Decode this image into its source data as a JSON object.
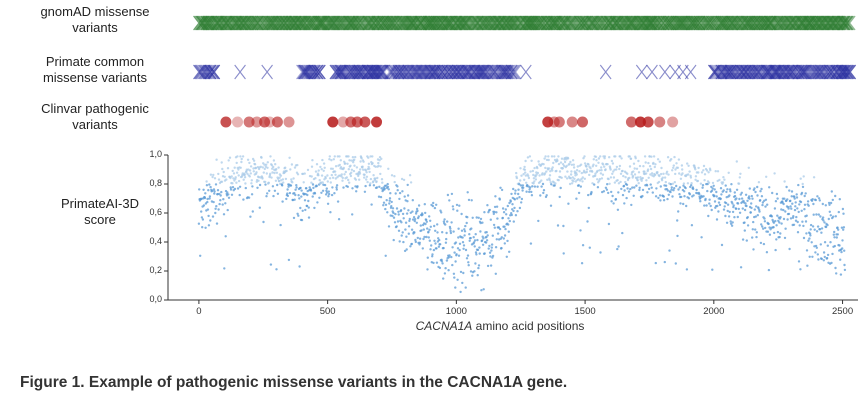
{
  "caption": "Figure 1. Example of pathogenic missense variants in the CACNA1A gene.",
  "chart_data": {
    "type": "scatter",
    "tracks": [
      {
        "name": "gnomAD missense variants",
        "label_line1": "gnomAD missense",
        "label_line2": "variants",
        "marker": "x",
        "color": "#2e7d32",
        "segments": [
          [
            0,
            2530
          ]
        ]
      },
      {
        "name": "Primate common missense variants",
        "label_line1": "Primate common",
        "label_line2": "missense variants",
        "marker": "x",
        "color": "#2a2fa0",
        "segments": [
          [
            0,
            60
          ],
          [
            400,
            470
          ],
          [
            530,
            720
          ],
          [
            740,
            1230
          ],
          [
            2000,
            2530
          ]
        ],
        "points": [
          160,
          265,
          1270,
          1580,
          1720,
          1760,
          1810,
          1850,
          1880,
          1910
        ]
      },
      {
        "name": "Clinvar pathogenic variants",
        "label_line1": "Clinvar pathogenic",
        "label_line2": "variants",
        "marker": "circle",
        "color": "#b71c1c",
        "points": [
          105,
          150,
          195,
          225,
          255,
          275,
          305,
          350,
          520,
          560,
          590,
          615,
          645,
          690,
          1355,
          1380,
          1400,
          1450,
          1490,
          1680,
          1715,
          1745,
          1790,
          1840
        ]
      }
    ],
    "scatter": {
      "ylabel_line1": "PrimateAI-3D",
      "ylabel_line2": "score",
      "xlabel_italic": "CACNA1A",
      "xlabel_rest": " amino acid positions",
      "xlim": [
        -120,
        2560
      ],
      "ylim": [
        0.0,
        1.0
      ],
      "xticks": [
        "0",
        "500",
        "1000",
        "1500",
        "2000",
        "2500"
      ],
      "xtick_values": [
        0,
        500,
        1000,
        1500,
        2000,
        2500
      ],
      "yticks": [
        "0,0",
        "0,2",
        "0,4",
        "0,6",
        "0,8",
        "1,0"
      ],
      "ytick_values": [
        0.0,
        0.2,
        0.4,
        0.6,
        0.8,
        1.0
      ],
      "color": "#5b9bd5",
      "profile": [
        [
          0,
          0.62
        ],
        [
          80,
          0.78
        ],
        [
          150,
          0.86
        ],
        [
          250,
          0.88
        ],
        [
          330,
          0.84
        ],
        [
          400,
          0.7
        ],
        [
          450,
          0.8
        ],
        [
          500,
          0.82
        ],
        [
          560,
          0.88
        ],
        [
          650,
          0.9
        ],
        [
          700,
          0.86
        ],
        [
          740,
          0.7
        ],
        [
          800,
          0.56
        ],
        [
          870,
          0.5
        ],
        [
          950,
          0.42
        ],
        [
          1050,
          0.38
        ],
        [
          1150,
          0.46
        ],
        [
          1200,
          0.55
        ],
        [
          1240,
          0.78
        ],
        [
          1300,
          0.86
        ],
        [
          1400,
          0.9
        ],
        [
          1500,
          0.88
        ],
        [
          1600,
          0.86
        ],
        [
          1700,
          0.86
        ],
        [
          1800,
          0.84
        ],
        [
          1900,
          0.82
        ],
        [
          1980,
          0.78
        ],
        [
          2050,
          0.68
        ],
        [
          2150,
          0.62
        ],
        [
          2250,
          0.58
        ],
        [
          2300,
          0.66
        ],
        [
          2380,
          0.56
        ],
        [
          2460,
          0.46
        ],
        [
          2510,
          0.44
        ]
      ]
    }
  }
}
